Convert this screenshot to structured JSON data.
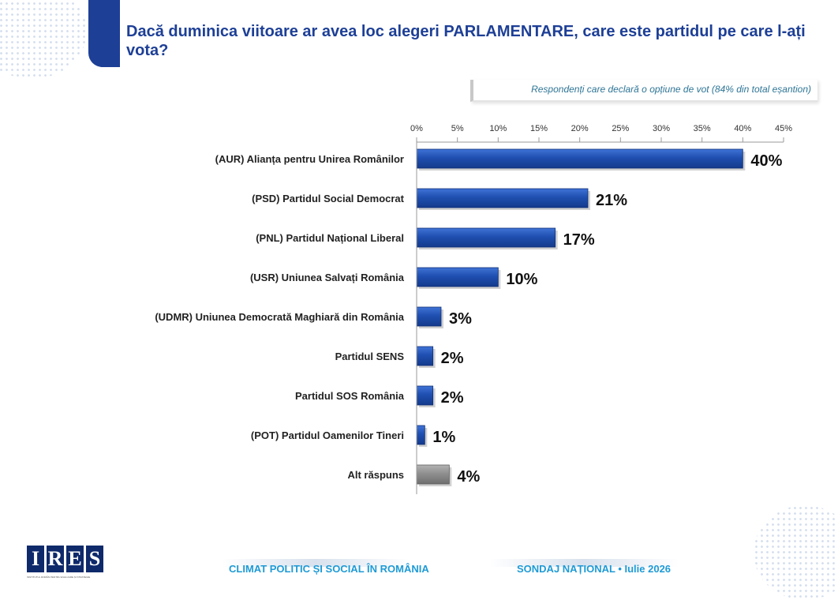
{
  "header": {
    "title": "Dacă duminica viitoare ar avea loc alegeri PARLAMENTARE, care este partidul pe care l-ați vota?",
    "subtitle": "Respondenți care declară o opțiune de vot (84% din total eșantion)"
  },
  "footer": {
    "logo_letters": [
      "I",
      "R",
      "E",
      "S"
    ],
    "logo_subtext": "INSTITUTUL ROMÂN PENTRU EVALUARE ȘI STRATEGIE",
    "left_text": "CLIMAT POLITIC ȘI SOCIAL ÎN ROMÂNIA",
    "right_text": "SONDAJ NAȚIONAL • Iulie 2026"
  },
  "colors": {
    "bar": "#1f4fb0",
    "bar_other": "#8f8f8f",
    "title": "#1d3f96",
    "footer": "#1e9ad6",
    "subtitle": "#2e7596"
  },
  "chart_data": {
    "type": "bar",
    "orientation": "horizontal",
    "categories": [
      "(AUR) Alianța pentru Unirea Românilor",
      "(PSD) Partidul Social Democrat",
      "(PNL) Partidul Național Liberal",
      "(USR) Uniunea Salvați România",
      "(UDMR) Uniunea Democrată Maghiară din România",
      "Partidul SENS",
      "Partidul SOS România",
      "(POT) Partidul Oamenilor Tineri",
      "Alt răspuns"
    ],
    "values": [
      40,
      21,
      17,
      10,
      3,
      2,
      2,
      1,
      4
    ],
    "data_labels": [
      "40%",
      "21%",
      "17%",
      "10%",
      "3%",
      "2%",
      "2%",
      "1%",
      "4%"
    ],
    "xlim": [
      0,
      45
    ],
    "ticks": [
      0,
      5,
      10,
      15,
      20,
      25,
      30,
      35,
      40,
      45
    ],
    "tick_labels": [
      "0%",
      "5%",
      "10%",
      "15%",
      "20%",
      "25%",
      "30%",
      "35%",
      "40%",
      "45%"
    ],
    "axis_position": "top",
    "grid": false
  }
}
